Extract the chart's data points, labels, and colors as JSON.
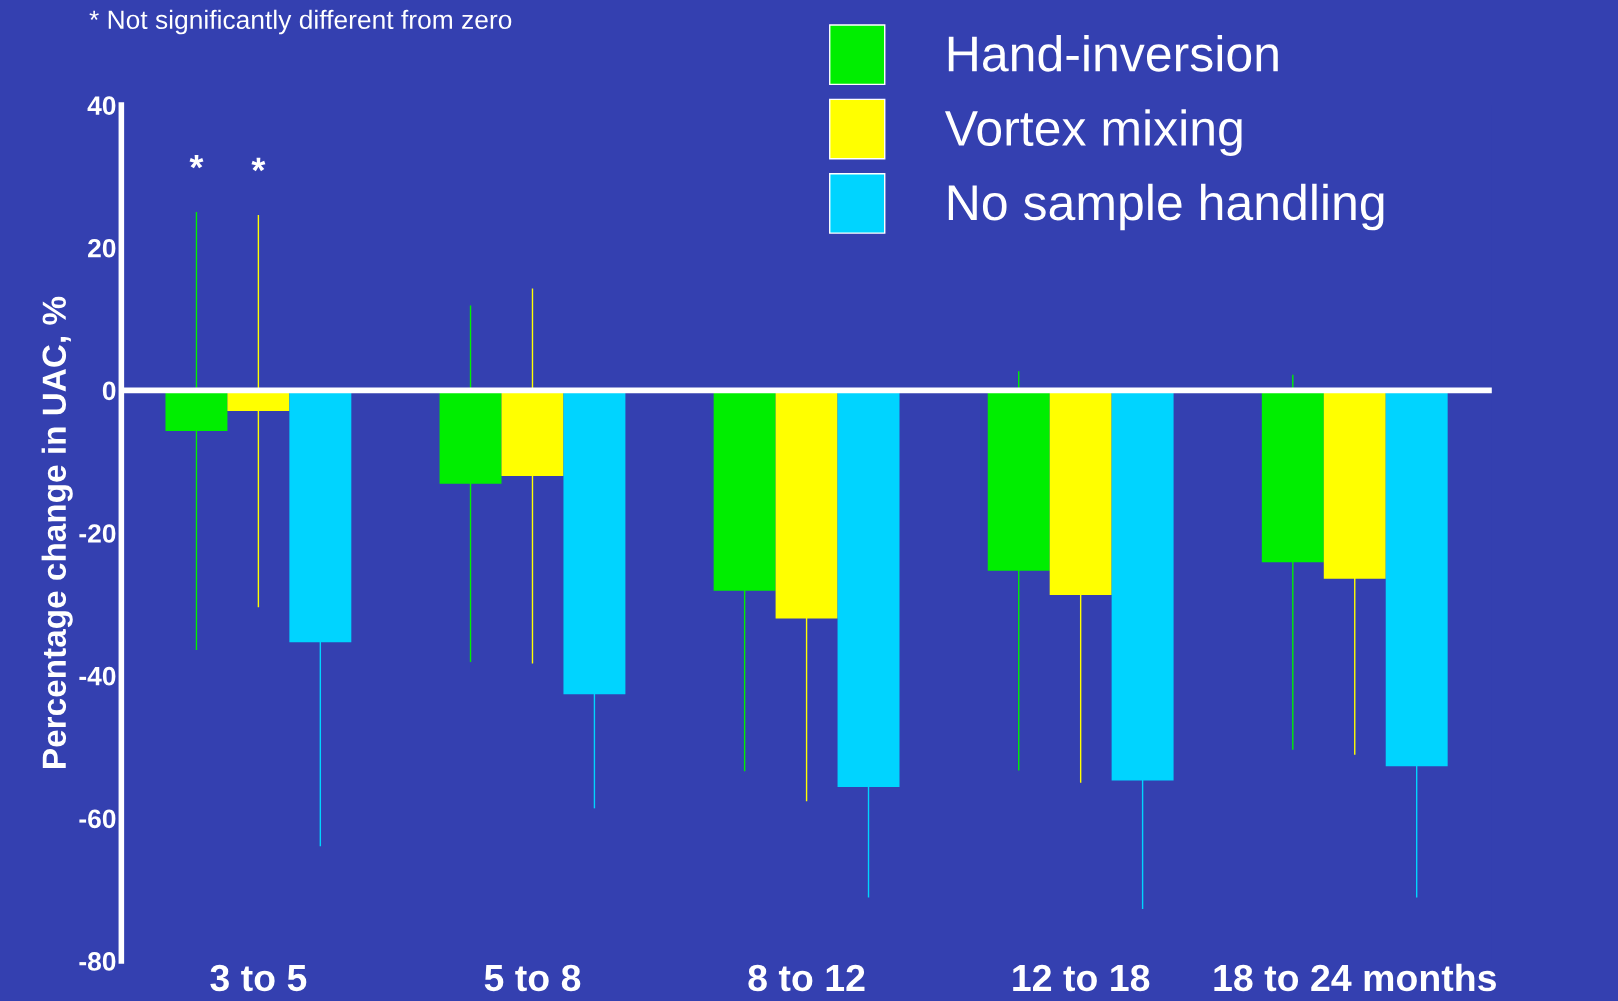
{
  "chart_data": {
    "type": "bar",
    "ylabel": "Percentage change in UAC, %",
    "categories": [
      "3 to 5",
      "5 to 8",
      "8 to 12",
      "12 to 18",
      "18 to 24 months"
    ],
    "series": [
      {
        "name": "Hand-inversion",
        "color": "#00ee00",
        "values": [
          -5.7,
          -13.1,
          -28.1,
          -25.3,
          -24.1
        ],
        "errors": [
          30.7,
          25,
          25.3,
          28,
          26.3
        ]
      },
      {
        "name": "Vortex mixing",
        "color": "#ffff00",
        "values": [
          -2.9,
          -12,
          -32,
          -28.7,
          -26.4
        ],
        "errors": [
          27.5,
          26.3,
          25.6,
          26.3,
          24.7
        ]
      },
      {
        "name": "No sample handling",
        "color": "#00d4ff",
        "values": [
          -35.3,
          -42.6,
          -55.6,
          -54.7,
          -52.7
        ],
        "errors": [
          28.6,
          16,
          15.5,
          18,
          18.4
        ]
      }
    ],
    "ylim": [
      -80,
      40
    ],
    "yticks": [
      -80,
      -60,
      -40,
      -20,
      0,
      20,
      40
    ],
    "ref_lines": [
      {
        "axis": "y",
        "value": 0,
        "color": "#ffffff"
      }
    ],
    "annotations": [
      "* Not significantly different from zero",
      "*",
      "*"
    ],
    "legend": "top right",
    "grid": false
  }
}
